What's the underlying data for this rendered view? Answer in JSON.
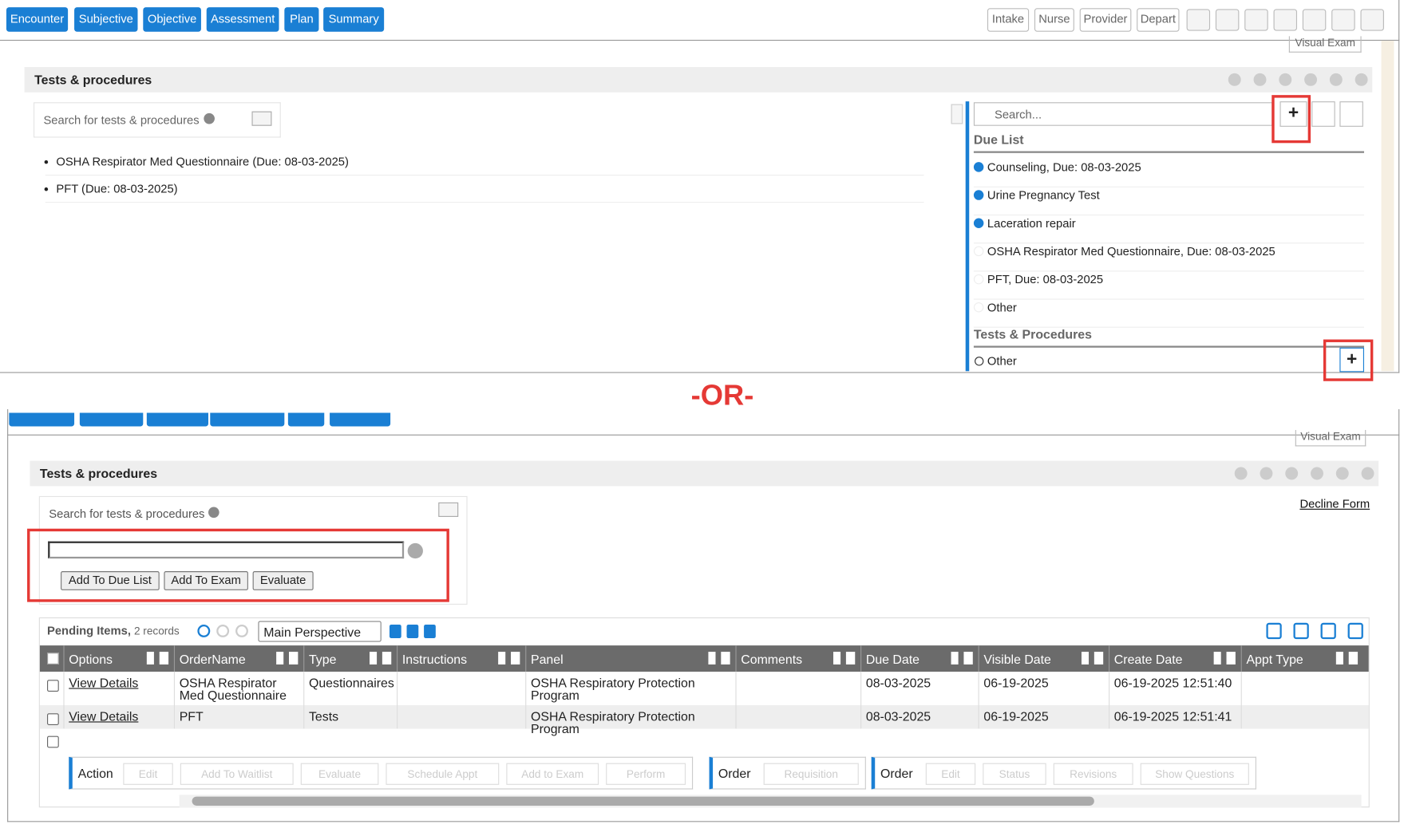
{
  "top": {
    "tabs": [
      "Encounter",
      "Subjective",
      "Objective",
      "Assessment",
      "Plan",
      "Summary"
    ],
    "right_tabs": [
      "Intake",
      "Nurse",
      "Provider",
      "Depart"
    ],
    "visual_exam": "Visual Exam",
    "panel_title": "Tests & procedures",
    "search_placeholder": "Search for tests & procedures",
    "list": [
      "OSHA Respirator Med Questionnaire (Due: 08-03-2025)",
      "PFT (Due: 08-03-2025)"
    ],
    "side": {
      "search": "Search...",
      "due_list_title": "Due List",
      "due_list": [
        {
          "label": "Counseling, Due: 08-03-2025",
          "checked": true
        },
        {
          "label": "Urine Pregnancy Test",
          "checked": true
        },
        {
          "label": "Laceration repair",
          "checked": true
        },
        {
          "label": "OSHA Respirator Med Questionnaire, Due: 08-03-2025",
          "checked": false
        },
        {
          "label": "PFT, Due: 08-03-2025",
          "checked": false
        },
        {
          "label": "Other",
          "checked": false
        }
      ],
      "tp_title": "Tests & Procedures",
      "tp_items": [
        "Other"
      ]
    }
  },
  "separator": "-OR-",
  "bottom": {
    "visual_exam": "Visual Exam",
    "panel_title": "Tests & procedures",
    "search_label": "Search for tests & procedures",
    "decline": "Decline Form",
    "buttons": [
      "Add To Due List",
      "Add To Exam",
      "Evaluate"
    ],
    "grid": {
      "title": "Pending Items,",
      "count": "2 records",
      "perspective": "Main Perspective",
      "columns": [
        "Options",
        "OrderName",
        "Type",
        "Instructions",
        "Panel",
        "Comments",
        "Due Date",
        "Visible Date",
        "Create Date",
        "Appt Type"
      ],
      "rows": [
        [
          "View Details",
          "OSHA Respirator Med Questionnaire",
          "Questionnaires",
          null,
          "OSHA Respiratory Protection Program",
          null,
          "08-03-2025",
          "06-19-2025",
          "06-19-2025 12:51:40",
          null
        ],
        [
          "View Details",
          "PFT",
          "Tests",
          null,
          "OSHA Respiratory Protection Program",
          null,
          "08-03-2025",
          "06-19-2025",
          "06-19-2025 12:51:41",
          null
        ]
      ],
      "action_groups": [
        {
          "label": "Action",
          "buttons": [
            "Edit",
            "Add To Waitlist",
            "Evaluate",
            "Schedule Appt",
            "Add to Exam",
            "Perform"
          ]
        },
        {
          "label": "Order",
          "buttons": [
            "Requisition"
          ]
        },
        {
          "label": "Order",
          "buttons": [
            "Edit",
            "Status",
            "Revisions",
            "Show Questions"
          ]
        }
      ]
    }
  }
}
